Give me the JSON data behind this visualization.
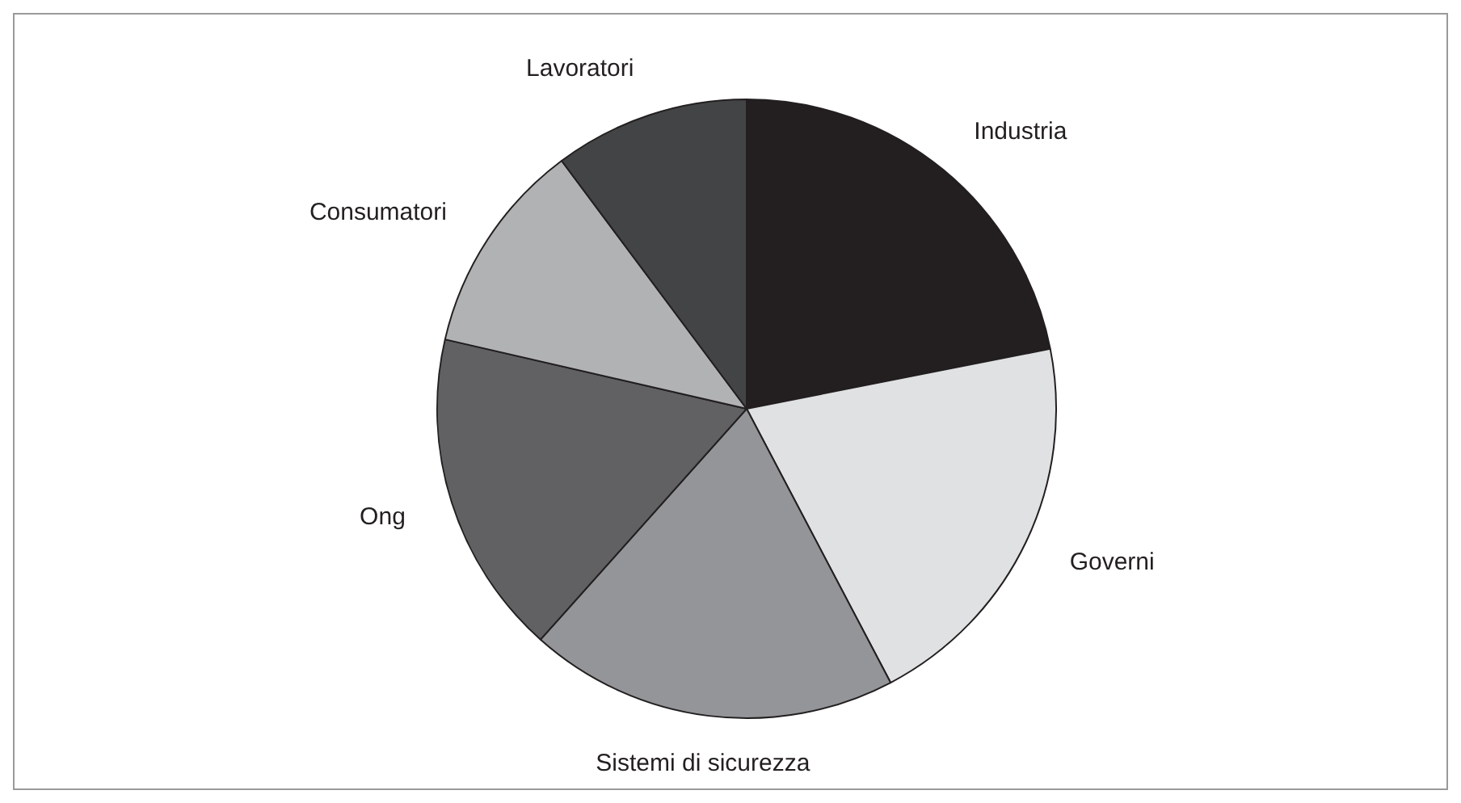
{
  "chart_data": {
    "type": "pie",
    "categories": [
      "Industria",
      "Governi",
      "Sistemi di sicurezza",
      "Ong",
      "Consumatori",
      "Lavoratori"
    ],
    "values": [
      21.9,
      20.4,
      19.3,
      17.0,
      11.2,
      10.2
    ],
    "colors": [
      "#231f20",
      "#e0e1e3",
      "#939598",
      "#616163",
      "#b1b2b4",
      "#434446"
    ],
    "legend": false
  }
}
